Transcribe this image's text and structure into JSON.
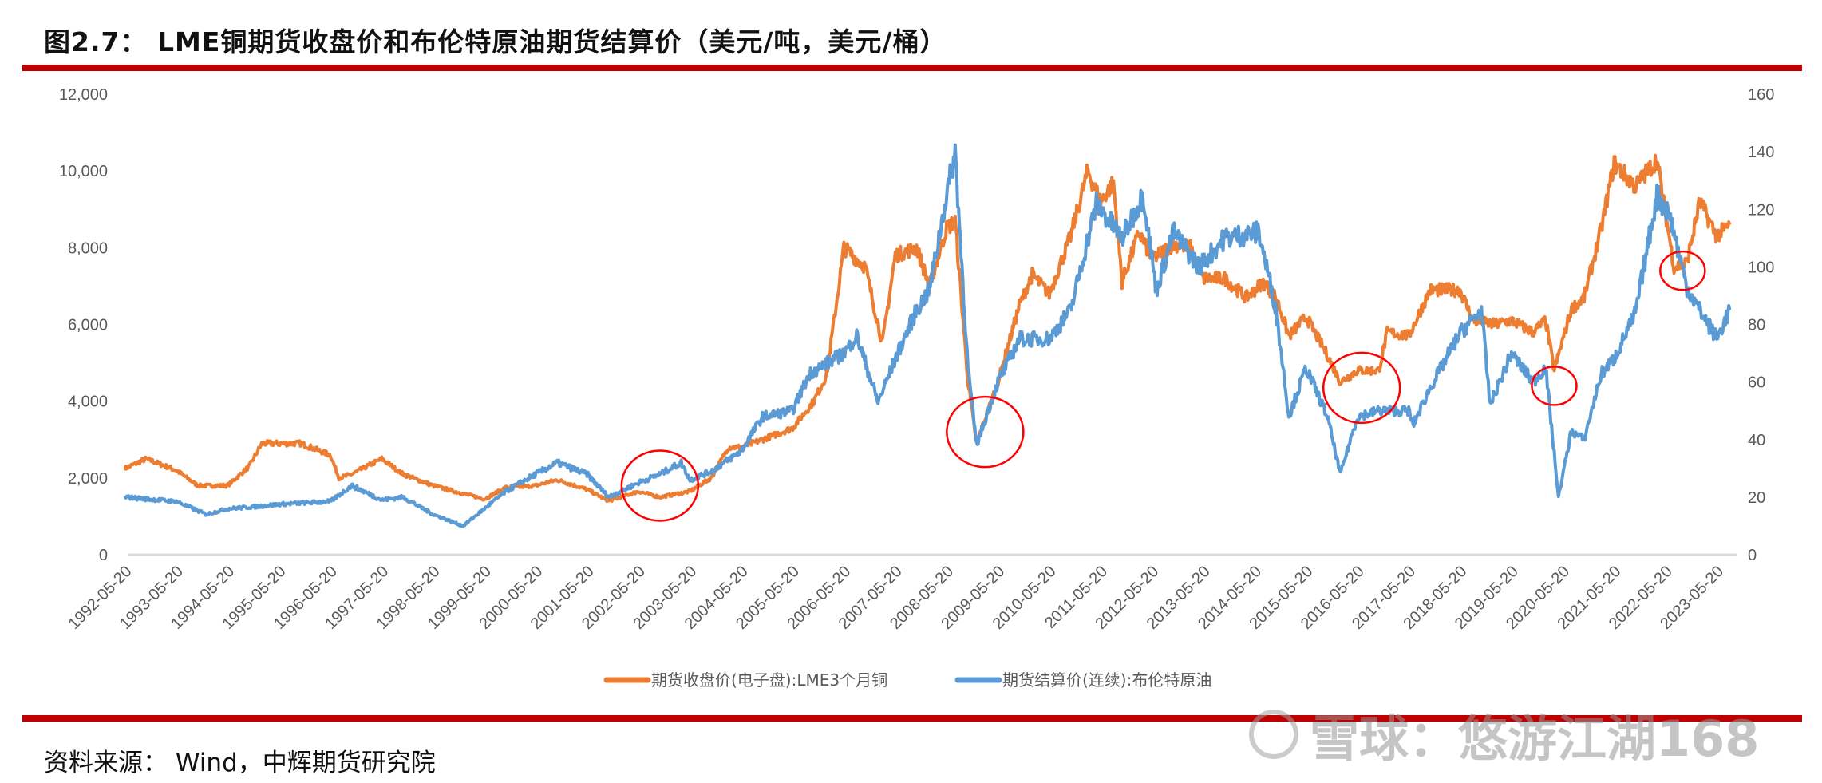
{
  "title": "图2.7： LME铜期货收盘价和布伦特原油期货结算价（美元/吨，美元/桶）",
  "source": "资料来源： Wind，中辉期货研究院",
  "watermark": "雪球：悠游江湖168",
  "chart_data": {
    "type": "line",
    "title": "",
    "x_range": [
      "1992-05-20",
      "2023-09-20"
    ],
    "x_ticks": [
      "1992-05-20",
      "1993-05-20",
      "1994-05-20",
      "1995-05-20",
      "1996-05-20",
      "1997-05-20",
      "1998-05-20",
      "1999-05-20",
      "2000-05-20",
      "2001-05-20",
      "2002-05-20",
      "2003-05-20",
      "2004-05-20",
      "2005-05-20",
      "2006-05-20",
      "2007-05-20",
      "2008-05-20",
      "2009-05-20",
      "2010-05-20",
      "2011-05-20",
      "2012-05-20",
      "2013-05-20",
      "2014-05-20",
      "2015-05-20",
      "2016-05-20",
      "2017-05-20",
      "2018-05-20",
      "2019-05-20",
      "2020-05-20",
      "2021-05-20",
      "2022-05-20",
      "2023-05-20"
    ],
    "y_left": {
      "range": [
        0,
        12000
      ],
      "ticks": [
        "0",
        "2,000",
        "4,000",
        "6,000",
        "8,000",
        "10,000",
        "12,000"
      ]
    },
    "y_right": {
      "range": [
        0,
        160
      ],
      "ticks": [
        "0",
        "20",
        "40",
        "60",
        "80",
        "100",
        "120",
        "140",
        "160"
      ]
    },
    "grid": false,
    "legend_position": "bottom",
    "series": [
      {
        "name": "期货收盘价(电子盘):LME3个月铜",
        "axis": "left",
        "color": "#ed7d31",
        "points": [
          [
            "1992-05",
            2250
          ],
          [
            "1992-10",
            2500
          ],
          [
            "1993-05",
            2200
          ],
          [
            "1993-10",
            1800
          ],
          [
            "1994-05",
            1800
          ],
          [
            "1994-10",
            2300
          ],
          [
            "1995-01",
            2900
          ],
          [
            "1995-05",
            2900
          ],
          [
            "1995-10",
            2900
          ],
          [
            "1996-05",
            2600
          ],
          [
            "1996-07",
            2000
          ],
          [
            "1996-10",
            2100
          ],
          [
            "1997-05",
            2500
          ],
          [
            "1997-10",
            2100
          ],
          [
            "1998-05",
            1800
          ],
          [
            "1998-10",
            1650
          ],
          [
            "1999-05",
            1450
          ],
          [
            "1999-10",
            1750
          ],
          [
            "2000-05",
            1800
          ],
          [
            "2000-10",
            1950
          ],
          [
            "2001-05",
            1700
          ],
          [
            "2001-10",
            1400
          ],
          [
            "2002-05",
            1650
          ],
          [
            "2002-10",
            1500
          ],
          [
            "2003-05",
            1650
          ],
          [
            "2003-10",
            2000
          ],
          [
            "2004-02",
            2800
          ],
          [
            "2004-05",
            2800
          ],
          [
            "2004-10",
            3000
          ],
          [
            "2005-05",
            3300
          ],
          [
            "2005-10",
            4000
          ],
          [
            "2006-01",
            4700
          ],
          [
            "2006-05",
            8000
          ],
          [
            "2006-10",
            7500
          ],
          [
            "2007-02",
            5500
          ],
          [
            "2007-05",
            7800
          ],
          [
            "2007-10",
            8000
          ],
          [
            "2008-01",
            7000
          ],
          [
            "2008-05",
            8500
          ],
          [
            "2008-07",
            8700
          ],
          [
            "2008-10",
            4500
          ],
          [
            "2008-12",
            2900
          ],
          [
            "2009-05",
            4500
          ],
          [
            "2009-10",
            6500
          ],
          [
            "2010-01",
            7300
          ],
          [
            "2010-05",
            6800
          ],
          [
            "2010-10",
            8300
          ],
          [
            "2011-02",
            10000
          ],
          [
            "2011-05",
            9200
          ],
          [
            "2011-08",
            9700
          ],
          [
            "2011-10",
            7100
          ],
          [
            "2012-02",
            8400
          ],
          [
            "2012-05",
            7700
          ],
          [
            "2012-10",
            8100
          ],
          [
            "2013-02",
            8000
          ],
          [
            "2013-05",
            7200
          ],
          [
            "2013-10",
            7200
          ],
          [
            "2014-03",
            6700
          ],
          [
            "2014-07",
            7100
          ],
          [
            "2014-10",
            6700
          ],
          [
            "2015-01",
            5700
          ],
          [
            "2015-05",
            6200
          ],
          [
            "2015-10",
            5200
          ],
          [
            "2016-01",
            4500
          ],
          [
            "2016-05",
            4800
          ],
          [
            "2016-10",
            4800
          ],
          [
            "2016-12",
            5800
          ],
          [
            "2017-05",
            5700
          ],
          [
            "2017-10",
            6900
          ],
          [
            "2018-05",
            6900
          ],
          [
            "2018-08",
            6100
          ],
          [
            "2019-01",
            6000
          ],
          [
            "2019-05",
            6100
          ],
          [
            "2019-10",
            5800
          ],
          [
            "2020-01",
            6100
          ],
          [
            "2020-03",
            4800
          ],
          [
            "2020-07",
            6400
          ],
          [
            "2020-10",
            6700
          ],
          [
            "2021-02",
            8500
          ],
          [
            "2021-05",
            10200
          ],
          [
            "2021-10",
            9600
          ],
          [
            "2022-03",
            10300
          ],
          [
            "2022-07",
            7500
          ],
          [
            "2022-10",
            7600
          ],
          [
            "2023-01",
            9200
          ],
          [
            "2023-05",
            8300
          ],
          [
            "2023-08",
            8600
          ]
        ]
      },
      {
        "name": "期货结算价(连续):布伦特原油",
        "axis": "right",
        "color": "#5b9bd5",
        "points": [
          [
            "1992-05",
            20
          ],
          [
            "1993-05",
            18.5
          ],
          [
            "1993-12",
            14
          ],
          [
            "1994-05",
            16
          ],
          [
            "1994-10",
            16.5
          ],
          [
            "1995-05",
            17.5
          ],
          [
            "1996-05",
            18.5
          ],
          [
            "1996-10",
            24
          ],
          [
            "1997-05",
            19
          ],
          [
            "1997-10",
            20
          ],
          [
            "1998-05",
            14
          ],
          [
            "1998-12",
            10
          ],
          [
            "1999-05",
            16
          ],
          [
            "1999-10",
            22
          ],
          [
            "2000-05",
            28
          ],
          [
            "2000-10",
            32
          ],
          [
            "2001-05",
            28
          ],
          [
            "2001-10",
            20
          ],
          [
            "2002-05",
            25
          ],
          [
            "2002-10",
            28
          ],
          [
            "2003-03",
            32
          ],
          [
            "2003-05",
            26
          ],
          [
            "2003-10",
            29
          ],
          [
            "2004-05",
            36
          ],
          [
            "2004-10",
            48
          ],
          [
            "2005-05",
            50
          ],
          [
            "2005-09",
            63
          ],
          [
            "2006-05",
            70
          ],
          [
            "2006-08",
            76
          ],
          [
            "2007-01",
            53
          ],
          [
            "2007-05",
            68
          ],
          [
            "2007-10",
            85
          ],
          [
            "2008-01",
            92
          ],
          [
            "2008-05",
            125
          ],
          [
            "2008-07",
            140
          ],
          [
            "2008-10",
            65
          ],
          [
            "2008-12",
            38
          ],
          [
            "2009-05",
            60
          ],
          [
            "2009-10",
            75
          ],
          [
            "2010-05",
            75
          ],
          [
            "2010-10",
            85
          ],
          [
            "2011-04",
            122
          ],
          [
            "2011-10",
            110
          ],
          [
            "2012-03",
            125
          ],
          [
            "2012-06",
            92
          ],
          [
            "2012-10",
            112
          ],
          [
            "2013-04",
            100
          ],
          [
            "2013-10",
            110
          ],
          [
            "2014-06",
            112
          ],
          [
            "2014-10",
            85
          ],
          [
            "2015-01",
            48
          ],
          [
            "2015-05",
            65
          ],
          [
            "2015-10",
            48
          ],
          [
            "2016-01",
            28
          ],
          [
            "2016-05",
            48
          ],
          [
            "2016-10",
            50
          ],
          [
            "2017-05",
            50
          ],
          [
            "2017-06",
            45
          ],
          [
            "2017-10",
            58
          ],
          [
            "2018-05",
            77
          ],
          [
            "2018-10",
            85
          ],
          [
            "2018-12",
            52
          ],
          [
            "2019-05",
            70
          ],
          [
            "2019-10",
            60
          ],
          [
            "2020-01",
            65
          ],
          [
            "2020-04",
            20
          ],
          [
            "2020-07",
            43
          ],
          [
            "2020-10",
            40
          ],
          [
            "2021-02",
            63
          ],
          [
            "2021-05",
            68
          ],
          [
            "2021-10",
            84
          ],
          [
            "2022-03",
            125
          ],
          [
            "2022-06",
            118
          ],
          [
            "2022-10",
            93
          ],
          [
            "2023-01",
            85
          ],
          [
            "2023-05",
            75
          ],
          [
            "2023-08",
            85
          ]
        ]
      }
    ],
    "annotations": [
      {
        "shape": "circle",
        "color": "#ff0000",
        "date": "2002-10",
        "value_left": 1800
      },
      {
        "shape": "circle",
        "color": "#ff0000",
        "date": "2009-02",
        "value_left": 3200
      },
      {
        "shape": "circle",
        "color": "#ff0000",
        "date": "2016-06",
        "value_left": 4350
      },
      {
        "shape": "circle",
        "color": "#ff0000",
        "date": "2020-03",
        "value_left": 4400
      },
      {
        "shape": "circle",
        "color": "#ff0000",
        "date": "2022-09",
        "value_left": 7400
      }
    ]
  }
}
